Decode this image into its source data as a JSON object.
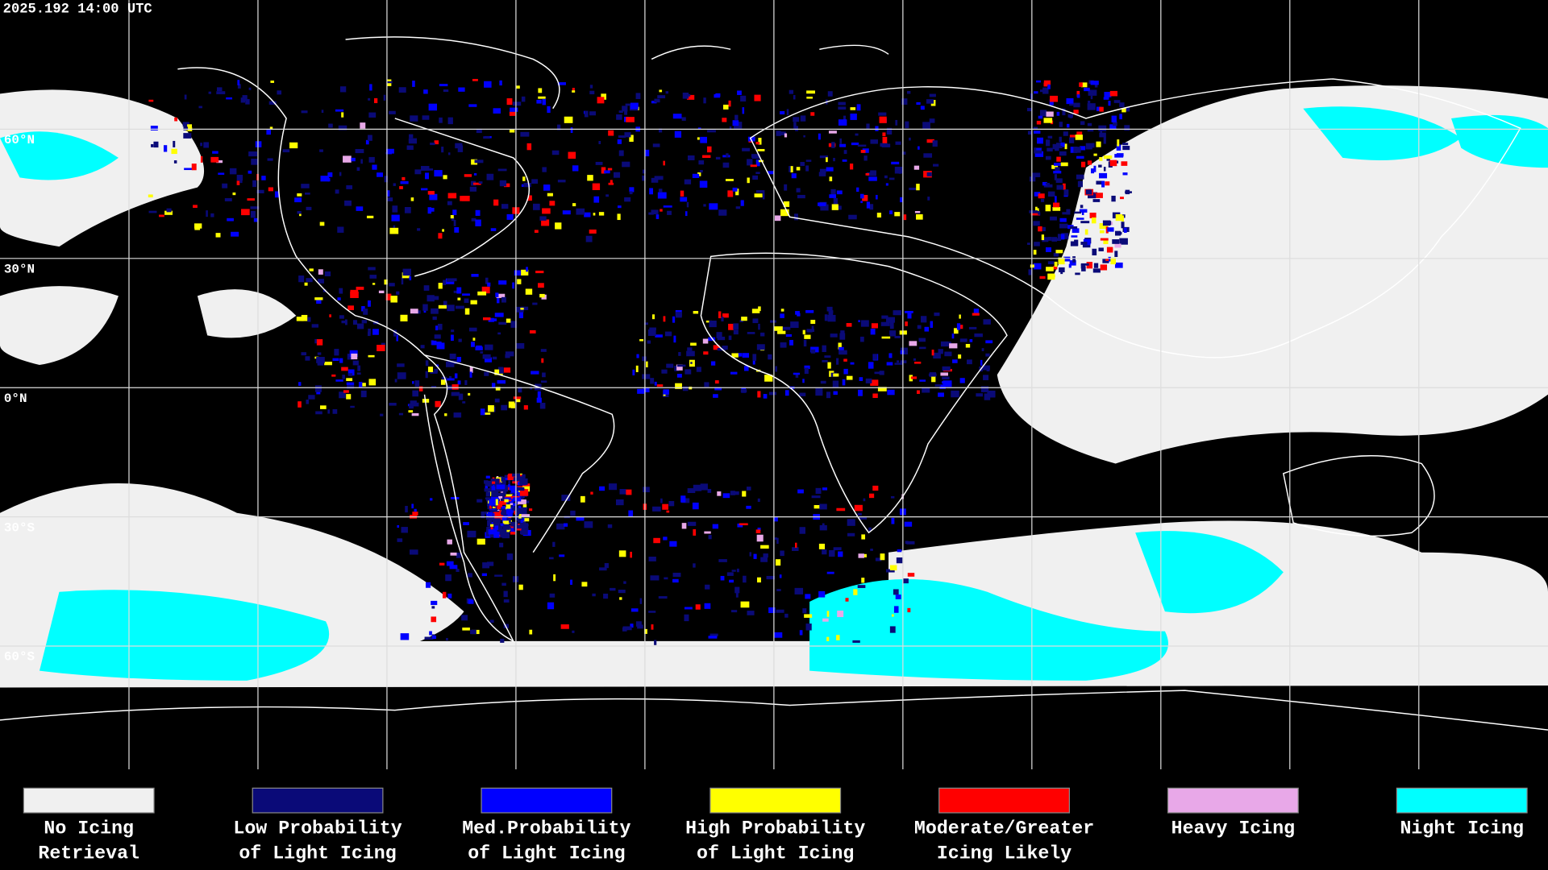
{
  "header": {
    "timestamp": "2025.192 14:00 UTC"
  },
  "map": {
    "latitude_labels": [
      "60°N",
      "30°N",
      "0°N",
      "30°S",
      "60°S"
    ]
  },
  "legend": {
    "items": [
      {
        "lines": [
          "No Icing",
          "Retrieval"
        ],
        "color": "#f0f0f0"
      },
      {
        "lines": [
          "Low Probability",
          "of Light Icing"
        ],
        "color": "#0a0a78"
      },
      {
        "lines": [
          "Med.Probability",
          "of Light Icing"
        ],
        "color": "#0000ff"
      },
      {
        "lines": [
          "High Probability",
          "of Light Icing"
        ],
        "color": "#ffff00"
      },
      {
        "lines": [
          "Moderate/Greater",
          "Icing Likely"
        ],
        "color": "#ff0000"
      },
      {
        "lines": [
          "Heavy Icing"
        ],
        "color": "#e8a8e8"
      },
      {
        "lines": [
          "Night Icing"
        ],
        "color": "#00ffff"
      }
    ]
  }
}
